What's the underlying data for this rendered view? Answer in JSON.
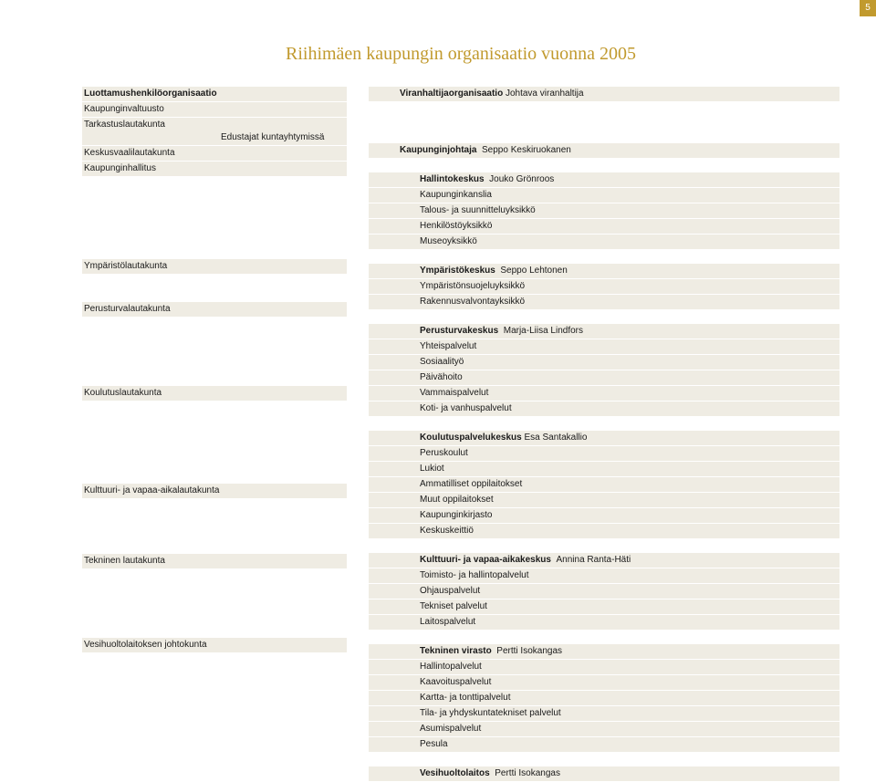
{
  "page_number": "5",
  "title": "Riihimäen kaupungin organisaatio vuonna 2005",
  "colors": {
    "accent": "#c19a2e",
    "row_bg": "#efece3",
    "text": "#1a1a1a",
    "page_bg": "#ffffff"
  },
  "left": {
    "block1": [
      "Luottamushenkilöorganisaatio",
      "Kaupunginvaltuusto",
      "Tarkastuslautakunta",
      "Keskusvaalilautakunta",
      "Kaupunginhallitus"
    ],
    "mid_label": "Edustajat kuntayhtymissä",
    "ymparisto": "Ympäristölautakunta",
    "perusturva": "Perusturvalautakunta",
    "koulutus": "Koulutuslautakunta",
    "kulttuuri": "Kulttuuri- ja vapaa-aikalautakunta",
    "tekninen": "Tekninen lautakunta",
    "vesi": "Vesihuoltolaitoksen johtokunta"
  },
  "right": {
    "r1": {
      "label": "Viranhaltijaorganisaatio",
      "name": "Johtava viranhaltija"
    },
    "r2": {
      "label": "Kaupunginjohtaja",
      "name": "Seppo Keskiruokanen"
    },
    "hallinto": {
      "label": "Hallintokeskus",
      "name": "Jouko Grönroos",
      "items": [
        "Kaupunginkanslia",
        "Talous- ja suunnitteluyksikkö",
        "Henkilöstöyksikkö",
        "Museoyksikkö"
      ]
    },
    "ymparisto": {
      "label": "Ympäristökeskus",
      "name": "Seppo Lehtonen",
      "items": [
        "Ympäristönsuojeluyksikkö",
        "Rakennusvalvontayksikkö"
      ]
    },
    "perusturva": {
      "label": "Perusturvakeskus",
      "name": "Marja-Liisa Lindfors",
      "items": [
        "Yhteispalvelut",
        "Sosiaalityö",
        "Päivähoito",
        "Vammaispalvelut",
        "Koti- ja vanhuspalvelut"
      ]
    },
    "koulutus": {
      "label": "Koulutuspalvelukeskus",
      "name": " Esa Santakallio",
      "items": [
        "Peruskoulut",
        "Lukiot",
        "Ammatilliset oppilaitokset",
        "Muut oppilaitokset",
        "Kaupunginkirjasto",
        "Keskuskeittiö"
      ]
    },
    "kulttuuri": {
      "label": "Kulttuuri- ja vapaa-aikakeskus",
      "name": "Annina Ranta-Häti",
      "items": [
        "Toimisto- ja hallintopalvelut",
        "Ohjauspalvelut",
        "Tekniset palvelut",
        "Laitospalvelut"
      ]
    },
    "tekninen": {
      "label": "Tekninen virasto",
      "name": "Pertti Isokangas",
      "items": [
        "Hallintopalvelut",
        "Kaavoituspalvelut",
        "Kartta- ja tonttipalvelut",
        "Tila- ja yhdyskuntatekniset palvelut",
        "Asumispalvelut",
        "Pesula"
      ]
    },
    "vesi": {
      "label": "Vesihuoltolaitos",
      "name": "Pertti Isokangas"
    }
  }
}
